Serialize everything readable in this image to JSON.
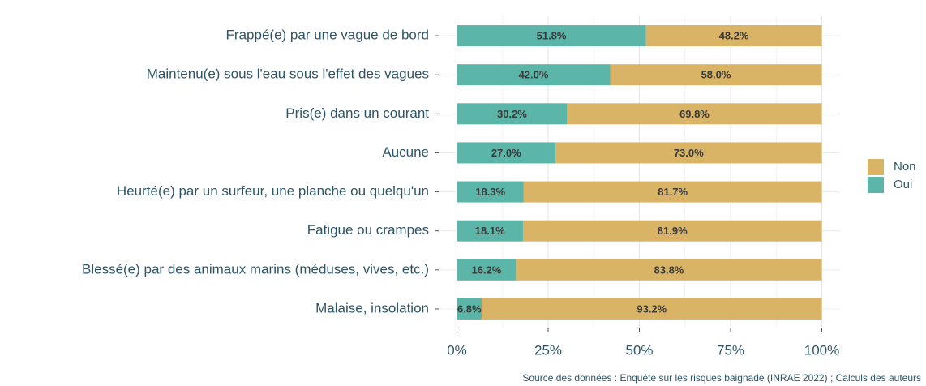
{
  "chart_data": {
    "type": "stacked-barh",
    "categories": [
      "Frappé(e) par une vague de bord",
      "Maintenu(e) sous l'eau sous l'effet des vagues",
      "Pris(e) dans un courant",
      "Aucune",
      "Heurté(e) par un surfeur, une planche ou quelqu'un",
      "Fatigue ou crampes",
      "Blessé(e) par des animaux marins (méduses, vives, etc.)",
      "Malaise, insolation"
    ],
    "series": [
      {
        "name": "Oui",
        "color": "#5bb5a9",
        "values": [
          51.8,
          42.0,
          30.2,
          27.0,
          18.3,
          18.1,
          16.2,
          6.8
        ],
        "value_labels": [
          "51.8%",
          "42.0%",
          "30.2%",
          "27.0%",
          "18.3%",
          "18.1%",
          "16.2%",
          "6.8%"
        ]
      },
      {
        "name": "Non",
        "color": "#d9b467",
        "values": [
          48.2,
          58.0,
          69.8,
          73.0,
          81.7,
          81.9,
          83.8,
          93.2
        ],
        "value_labels": [
          "48.2%",
          "58.0%",
          "69.8%",
          "73.0%",
          "81.7%",
          "81.9%",
          "83.8%",
          "93.2%"
        ]
      }
    ],
    "xlim": [
      -5,
      105
    ],
    "xticks": [
      {
        "value": 0,
        "label": "0%"
      },
      {
        "value": 25,
        "label": "25%"
      },
      {
        "value": 50,
        "label": "50%"
      },
      {
        "value": 75,
        "label": "75%"
      },
      {
        "value": 100,
        "label": "100%"
      }
    ],
    "grid": true,
    "legend": "right",
    "caption": "Source des données : Enquête sur les risques baignade (INRAE 2022) ; Calculs des auteurs"
  }
}
